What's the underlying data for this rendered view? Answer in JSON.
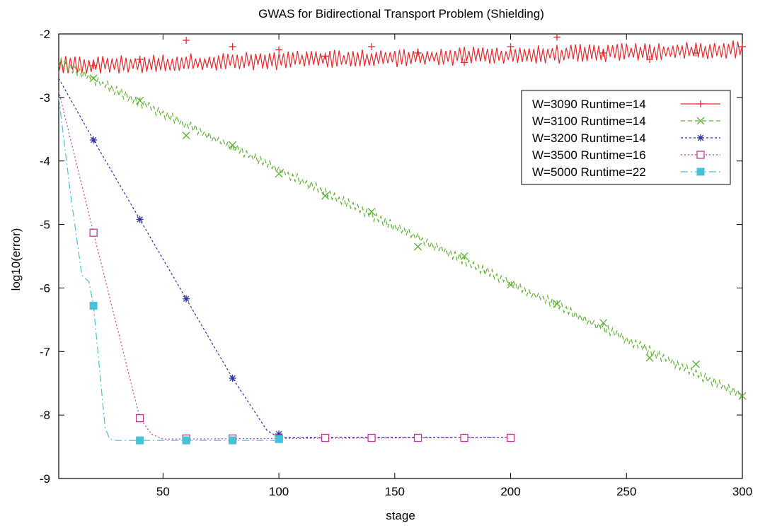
{
  "chart_data": {
    "type": "line",
    "title": "GWAS for Bidirectional Transport Problem (Shielding)",
    "xlabel": "stage",
    "ylabel": "log10(error)",
    "xlim": [
      5,
      300
    ],
    "ylim": [
      -9,
      -2
    ],
    "xticks": [
      50,
      100,
      150,
      200,
      250,
      300
    ],
    "yticks": [
      -9,
      -8,
      -7,
      -6,
      -5,
      -4,
      -3,
      -2
    ],
    "grid": false,
    "legend_position": "top-right",
    "series": [
      {
        "name": "W=3090 Runtime=14",
        "color": "#e8282b",
        "dash": "solid",
        "marker": "plus",
        "line_x": [
          5,
          300
        ],
        "line_y": [
          -2.5,
          -2.25
        ],
        "noise_amp": 0.15,
        "x": [
          20,
          40,
          60,
          80,
          100,
          120,
          140,
          160,
          180,
          200,
          220,
          240,
          260,
          280,
          300
        ],
        "y": [
          -2.5,
          -2.4,
          -2.1,
          -2.2,
          -2.25,
          -2.35,
          -2.2,
          -2.3,
          -2.45,
          -2.2,
          -2.05,
          -2.3,
          -2.4,
          -2.3,
          -2.2
        ]
      },
      {
        "name": "W=3100 Runtime=14",
        "color": "#5ab22e",
        "dash": "6,4",
        "marker": "x",
        "line_x": [
          5,
          300
        ],
        "line_y": [
          -2.45,
          -7.7
        ],
        "noise_amp": 0.08,
        "x": [
          20,
          40,
          60,
          80,
          100,
          120,
          140,
          160,
          180,
          200,
          220,
          240,
          260,
          280,
          300
        ],
        "y": [
          -2.7,
          -3.05,
          -3.6,
          -3.75,
          -4.2,
          -4.55,
          -4.8,
          -5.35,
          -5.5,
          -5.95,
          -6.25,
          -6.55,
          -7.1,
          -7.2,
          -7.7
        ]
      },
      {
        "name": "W=3200 Runtime=14",
        "color": "#2b2fa8",
        "dash": "3,3",
        "marker": "asterisk",
        "line_x": [
          5,
          20,
          40,
          60,
          80,
          95,
          100,
          200
        ],
        "line_y": [
          -2.7,
          -3.67,
          -4.92,
          -6.17,
          -7.42,
          -8.25,
          -8.35,
          -8.35
        ],
        "noise_amp": 0,
        "x": [
          20,
          40,
          60,
          80,
          100
        ],
        "y": [
          -3.67,
          -4.92,
          -6.17,
          -7.42,
          -8.3
        ]
      },
      {
        "name": "W=3500 Runtime=16",
        "color": "#c8369b",
        "dash": "2,3",
        "marker": "square-open",
        "line_x": [
          5,
          20,
          40,
          45,
          50,
          200
        ],
        "line_y": [
          -2.9,
          -5.13,
          -8.05,
          -8.3,
          -8.38,
          -8.35
        ],
        "noise_amp": 0,
        "x": [
          20,
          40,
          60,
          80,
          100,
          120,
          140,
          160,
          180,
          200
        ],
        "y": [
          -5.13,
          -8.05,
          -8.37,
          -8.37,
          -8.37,
          -8.36,
          -8.36,
          -8.36,
          -8.36,
          -8.36
        ]
      },
      {
        "name": "W=5000 Runtime=22",
        "color": "#45c2d6",
        "dash": "10,4,2,4",
        "marker": "square-filled",
        "line_x": [
          5,
          10,
          15,
          18,
          20,
          25,
          27,
          30,
          100
        ],
        "line_y": [
          -3.0,
          -4.5,
          -5.8,
          -5.9,
          -6.28,
          -8.2,
          -8.38,
          -8.4,
          -8.4
        ],
        "noise_amp": 0,
        "x": [
          20,
          40,
          60,
          80,
          100
        ],
        "y": [
          -6.28,
          -8.4,
          -8.4,
          -8.4,
          -8.38
        ]
      }
    ]
  }
}
